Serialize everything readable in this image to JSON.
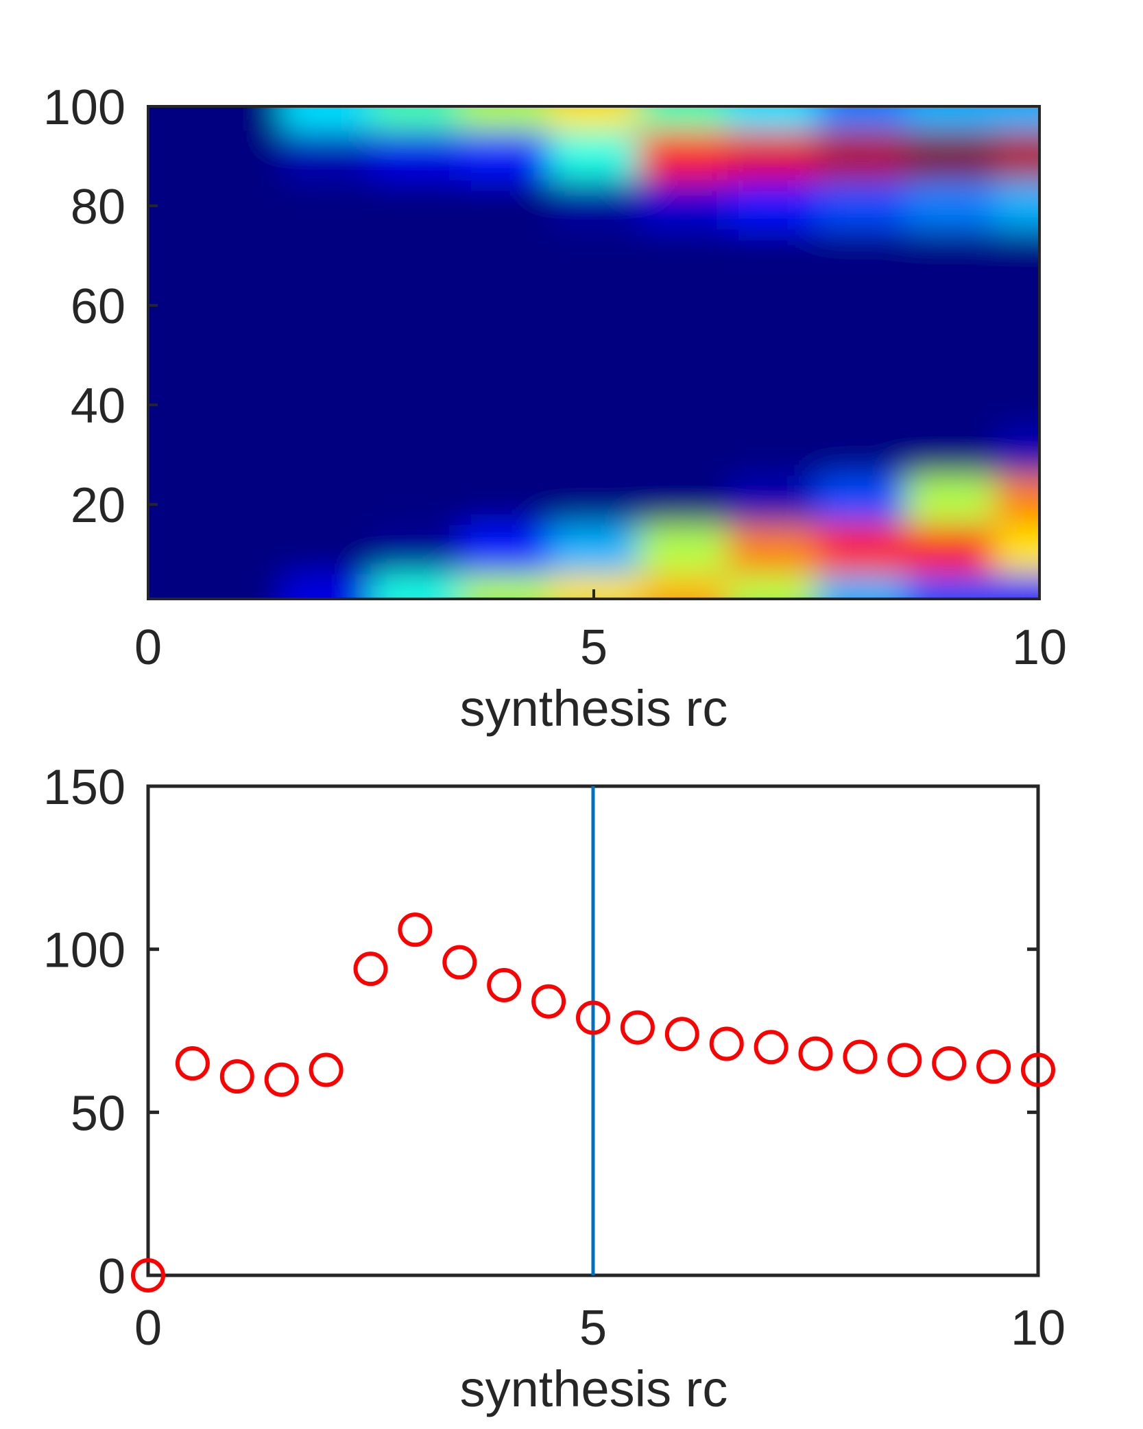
{
  "chart_data": [
    {
      "type": "heatmap",
      "title": "",
      "xlabel": "synthesis rc",
      "ylabel": "",
      "xlim": [
        0,
        10
      ],
      "ylim": [
        1,
        100
      ],
      "xticks": [
        0,
        5,
        10
      ],
      "yticks": [
        20,
        40,
        60,
        80,
        100
      ],
      "colormap": "jet",
      "x": [
        0,
        1,
        2,
        3,
        4,
        5,
        6,
        7,
        8,
        9,
        10
      ],
      "y": [
        100,
        90,
        80,
        70,
        60,
        50,
        40,
        30,
        20,
        10,
        1
      ],
      "z": [
        [
          0.0,
          0.0,
          0.35,
          0.45,
          0.55,
          0.65,
          0.45,
          0.35,
          0.25,
          0.3,
          0.3
        ],
        [
          0.0,
          0.0,
          0.05,
          0.1,
          0.15,
          0.4,
          0.85,
          0.9,
          0.95,
          1.0,
          0.95
        ],
        [
          0.0,
          0.0,
          0.0,
          0.0,
          0.0,
          0.03,
          0.08,
          0.15,
          0.2,
          0.25,
          0.3
        ],
        [
          0.0,
          0.0,
          0.0,
          0.0,
          0.0,
          0.0,
          0.0,
          0.0,
          0.0,
          0.0,
          0.0
        ],
        [
          0.0,
          0.0,
          0.0,
          0.0,
          0.0,
          0.0,
          0.0,
          0.0,
          0.0,
          0.0,
          0.0
        ],
        [
          0.0,
          0.0,
          0.0,
          0.0,
          0.0,
          0.0,
          0.0,
          0.0,
          0.0,
          0.0,
          0.0
        ],
        [
          0.0,
          0.0,
          0.0,
          0.0,
          0.0,
          0.0,
          0.0,
          0.0,
          0.0,
          0.0,
          0.0
        ],
        [
          0.0,
          0.0,
          0.0,
          0.0,
          0.0,
          0.0,
          0.0,
          0.0,
          0.0,
          0.0,
          0.05
        ],
        [
          0.0,
          0.0,
          0.0,
          0.0,
          0.0,
          0.0,
          0.0,
          0.05,
          0.2,
          0.55,
          0.75
        ],
        [
          0.0,
          0.0,
          0.0,
          0.02,
          0.15,
          0.3,
          0.55,
          0.75,
          0.85,
          0.85,
          0.65
        ],
        [
          0.0,
          0.0,
          0.1,
          0.4,
          0.55,
          0.65,
          0.7,
          0.55,
          0.3,
          0.2,
          0.15
        ]
      ]
    },
    {
      "type": "scatter",
      "title": "",
      "xlabel": "synthesis rc",
      "ylabel": "",
      "xlim": [
        0,
        10
      ],
      "ylim": [
        0,
        150
      ],
      "xticks": [
        0,
        5,
        10
      ],
      "yticks": [
        0,
        50,
        100,
        150
      ],
      "marker": "circle",
      "marker_color": "#ff0000",
      "x": [
        0,
        0.5,
        1,
        1.5,
        2,
        2.5,
        3,
        3.5,
        4,
        4.5,
        5,
        5.5,
        6,
        6.5,
        7,
        7.5,
        8,
        8.5,
        9,
        9.5,
        10
      ],
      "y": [
        0,
        65,
        61,
        60,
        63,
        94,
        106,
        96,
        89,
        84,
        79,
        76,
        74,
        71,
        70,
        68,
        67,
        66,
        65,
        64,
        63
      ],
      "vline": {
        "x": 5,
        "color": "#0072bd"
      }
    }
  ]
}
